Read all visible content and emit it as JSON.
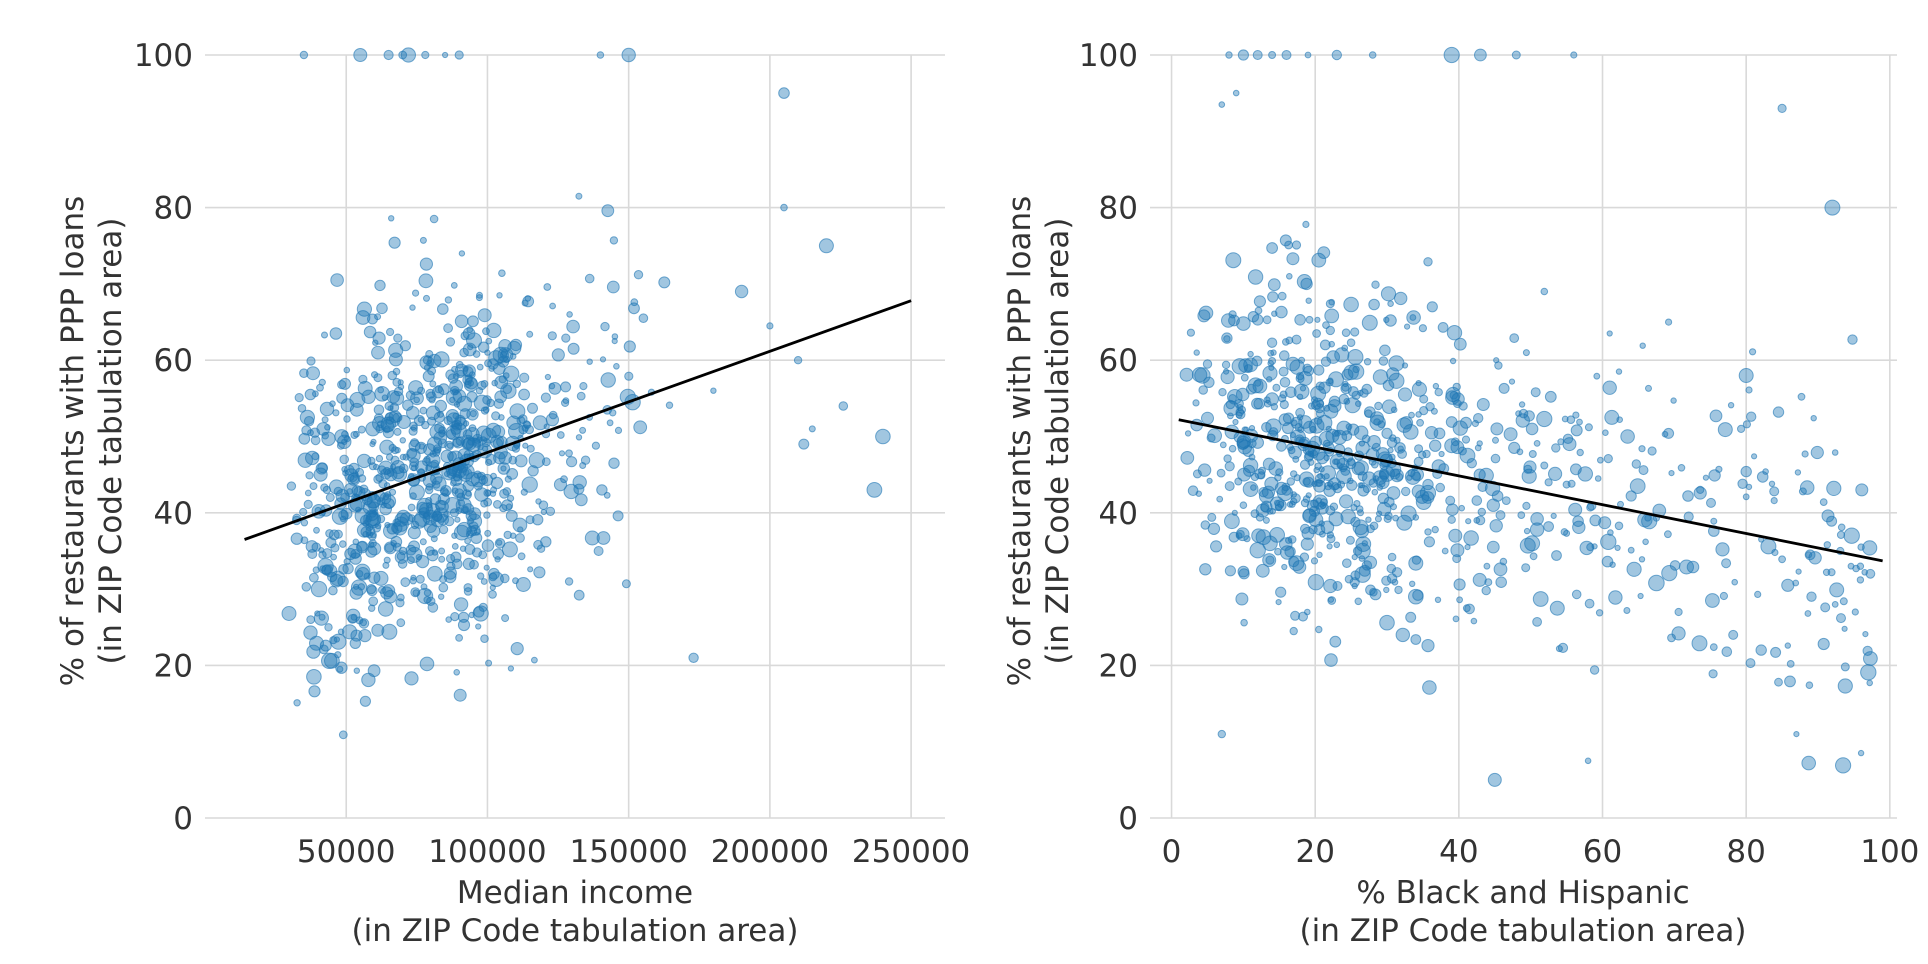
{
  "colors": {
    "points": "#1f77b4",
    "trendline": "#000000",
    "grid": "#d9d9d9"
  },
  "chart_data": [
    {
      "type": "scatter",
      "title": "",
      "xlabel": [
        "Median income",
        "(in ZIP Code tabulation area)"
      ],
      "ylabel": [
        "% of restaurants with PPP loans",
        "(in ZIP Code tabulation area)"
      ],
      "xlim": [
        0,
        262000
      ],
      "ylim": [
        0,
        100
      ],
      "xticks": [
        50000,
        100000,
        150000,
        200000,
        250000
      ],
      "xtick_labels": [
        "50000",
        "100000",
        "150000",
        "200000",
        "250000"
      ],
      "yticks": [
        0,
        20,
        40,
        60,
        80,
        100
      ],
      "ytick_labels": [
        "0",
        "20",
        "40",
        "60",
        "80",
        "100"
      ],
      "grid": true,
      "trendline": {
        "x": [
          14000,
          250000
        ],
        "y": [
          36.5,
          67.8
        ]
      },
      "points": {
        "x": [],
        "y": []
      }
    },
    {
      "type": "scatter",
      "title": "",
      "xlabel": [
        "% Black and Hispanic",
        "(in ZIP Code tabulation area)"
      ],
      "ylabel": [
        "% of restaurants with PPP loans",
        "(in ZIP Code tabulation area)"
      ],
      "xlim": [
        -3,
        101
      ],
      "ylim": [
        0,
        100
      ],
      "xticks": [
        0,
        20,
        40,
        60,
        80,
        100
      ],
      "xtick_labels": [
        "0",
        "20",
        "40",
        "60",
        "80",
        "100"
      ],
      "yticks": [
        0,
        20,
        40,
        60,
        80,
        100
      ],
      "ytick_labels": [
        "0",
        "20",
        "40",
        "60",
        "80",
        "100"
      ],
      "grid": true,
      "trendline": {
        "x": [
          1,
          99
        ],
        "y": [
          52.2,
          33.7
        ]
      },
      "points": {
        "x": [],
        "y": []
      }
    }
  ]
}
